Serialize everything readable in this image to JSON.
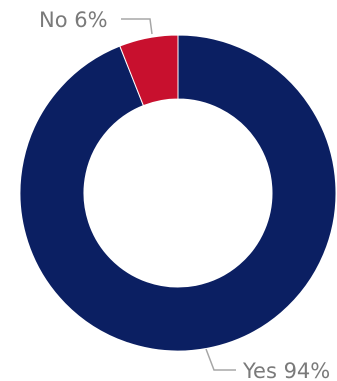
{
  "chart_data": {
    "type": "pie",
    "variant": "donut",
    "title": "",
    "legend": "none",
    "series": [
      {
        "categories": [
          "Yes",
          "No"
        ],
        "values": [
          94,
          6
        ],
        "labels": [
          "Yes 94%",
          "No 6%"
        ],
        "colors": [
          "#0b1f62",
          "#c8102e"
        ]
      }
    ]
  }
}
